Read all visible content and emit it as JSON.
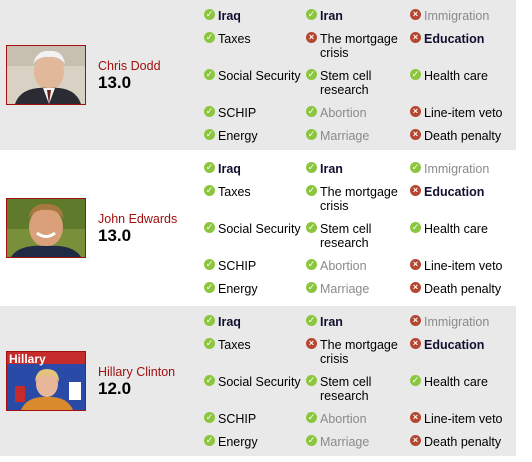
{
  "candidates": [
    {
      "name": "Chris Dodd",
      "score": "13.0",
      "photo_icon": "portrait-chris-dodd",
      "issues": [
        {
          "label": "Iraq",
          "mark": "check",
          "style": "bold"
        },
        {
          "label": "Iran",
          "mark": "check",
          "style": "bold"
        },
        {
          "label": "Immigration",
          "mark": "cross",
          "style": "gray"
        },
        {
          "label": "Taxes",
          "mark": "check",
          "style": "normal"
        },
        {
          "label": "The mortgage crisis",
          "mark": "cross",
          "style": "normal"
        },
        {
          "label": "Education",
          "mark": "cross",
          "style": "bold"
        },
        {
          "label": "Social Security",
          "mark": "check",
          "style": "normal"
        },
        {
          "label": "Stem cell research",
          "mark": "check",
          "style": "normal"
        },
        {
          "label": "Health care",
          "mark": "check",
          "style": "normal"
        },
        {
          "label": "SCHIP",
          "mark": "check",
          "style": "normal"
        },
        {
          "label": "Abortion",
          "mark": "check",
          "style": "gray"
        },
        {
          "label": "Line-item veto",
          "mark": "cross",
          "style": "normal"
        },
        {
          "label": "Energy",
          "mark": "check",
          "style": "normal"
        },
        {
          "label": "Marriage",
          "mark": "check",
          "style": "gray"
        },
        {
          "label": "Death penalty",
          "mark": "cross",
          "style": "normal"
        }
      ]
    },
    {
      "name": "John Edwards",
      "score": "13.0",
      "photo_icon": "portrait-john-edwards",
      "issues": [
        {
          "label": "Iraq",
          "mark": "check",
          "style": "bold"
        },
        {
          "label": "Iran",
          "mark": "check",
          "style": "bold"
        },
        {
          "label": "Immigration",
          "mark": "check",
          "style": "gray"
        },
        {
          "label": "Taxes",
          "mark": "check",
          "style": "normal"
        },
        {
          "label": "The mortgage crisis",
          "mark": "check",
          "style": "normal"
        },
        {
          "label": "Education",
          "mark": "cross",
          "style": "bold"
        },
        {
          "label": "Social Security",
          "mark": "check",
          "style": "normal"
        },
        {
          "label": "Stem cell research",
          "mark": "check",
          "style": "normal"
        },
        {
          "label": "Health care",
          "mark": "check",
          "style": "normal"
        },
        {
          "label": "SCHIP",
          "mark": "check",
          "style": "normal"
        },
        {
          "label": "Abortion",
          "mark": "check",
          "style": "gray"
        },
        {
          "label": "Line-item veto",
          "mark": "cross",
          "style": "normal"
        },
        {
          "label": "Energy",
          "mark": "check",
          "style": "normal"
        },
        {
          "label": "Marriage",
          "mark": "check",
          "style": "gray"
        },
        {
          "label": "Death penalty",
          "mark": "cross",
          "style": "normal"
        }
      ]
    },
    {
      "name": "Hillary Clinton",
      "score": "12.0",
      "photo_icon": "portrait-hillary-clinton",
      "photo_sign_text": "Hillary",
      "issues": [
        {
          "label": "Iraq",
          "mark": "check",
          "style": "bold"
        },
        {
          "label": "Iran",
          "mark": "check",
          "style": "bold"
        },
        {
          "label": "Immigration",
          "mark": "cross",
          "style": "gray"
        },
        {
          "label": "Taxes",
          "mark": "check",
          "style": "normal"
        },
        {
          "label": "The mortgage crisis",
          "mark": "cross",
          "style": "normal"
        },
        {
          "label": "Education",
          "mark": "cross",
          "style": "bold"
        },
        {
          "label": "Social Security",
          "mark": "check",
          "style": "normal"
        },
        {
          "label": "Stem cell research",
          "mark": "check",
          "style": "normal"
        },
        {
          "label": "Health care",
          "mark": "check",
          "style": "normal"
        },
        {
          "label": "SCHIP",
          "mark": "check",
          "style": "normal"
        },
        {
          "label": "Abortion",
          "mark": "check",
          "style": "gray"
        },
        {
          "label": "Line-item veto",
          "mark": "cross",
          "style": "normal"
        },
        {
          "label": "Energy",
          "mark": "check",
          "style": "normal"
        },
        {
          "label": "Marriage",
          "mark": "check",
          "style": "gray"
        },
        {
          "label": "Death penalty",
          "mark": "cross",
          "style": "normal"
        }
      ]
    }
  ],
  "colors": {
    "name": "#a01010",
    "check": "#8cc63f",
    "cross": "#b5462f",
    "shade": "#e9e9e9"
  }
}
